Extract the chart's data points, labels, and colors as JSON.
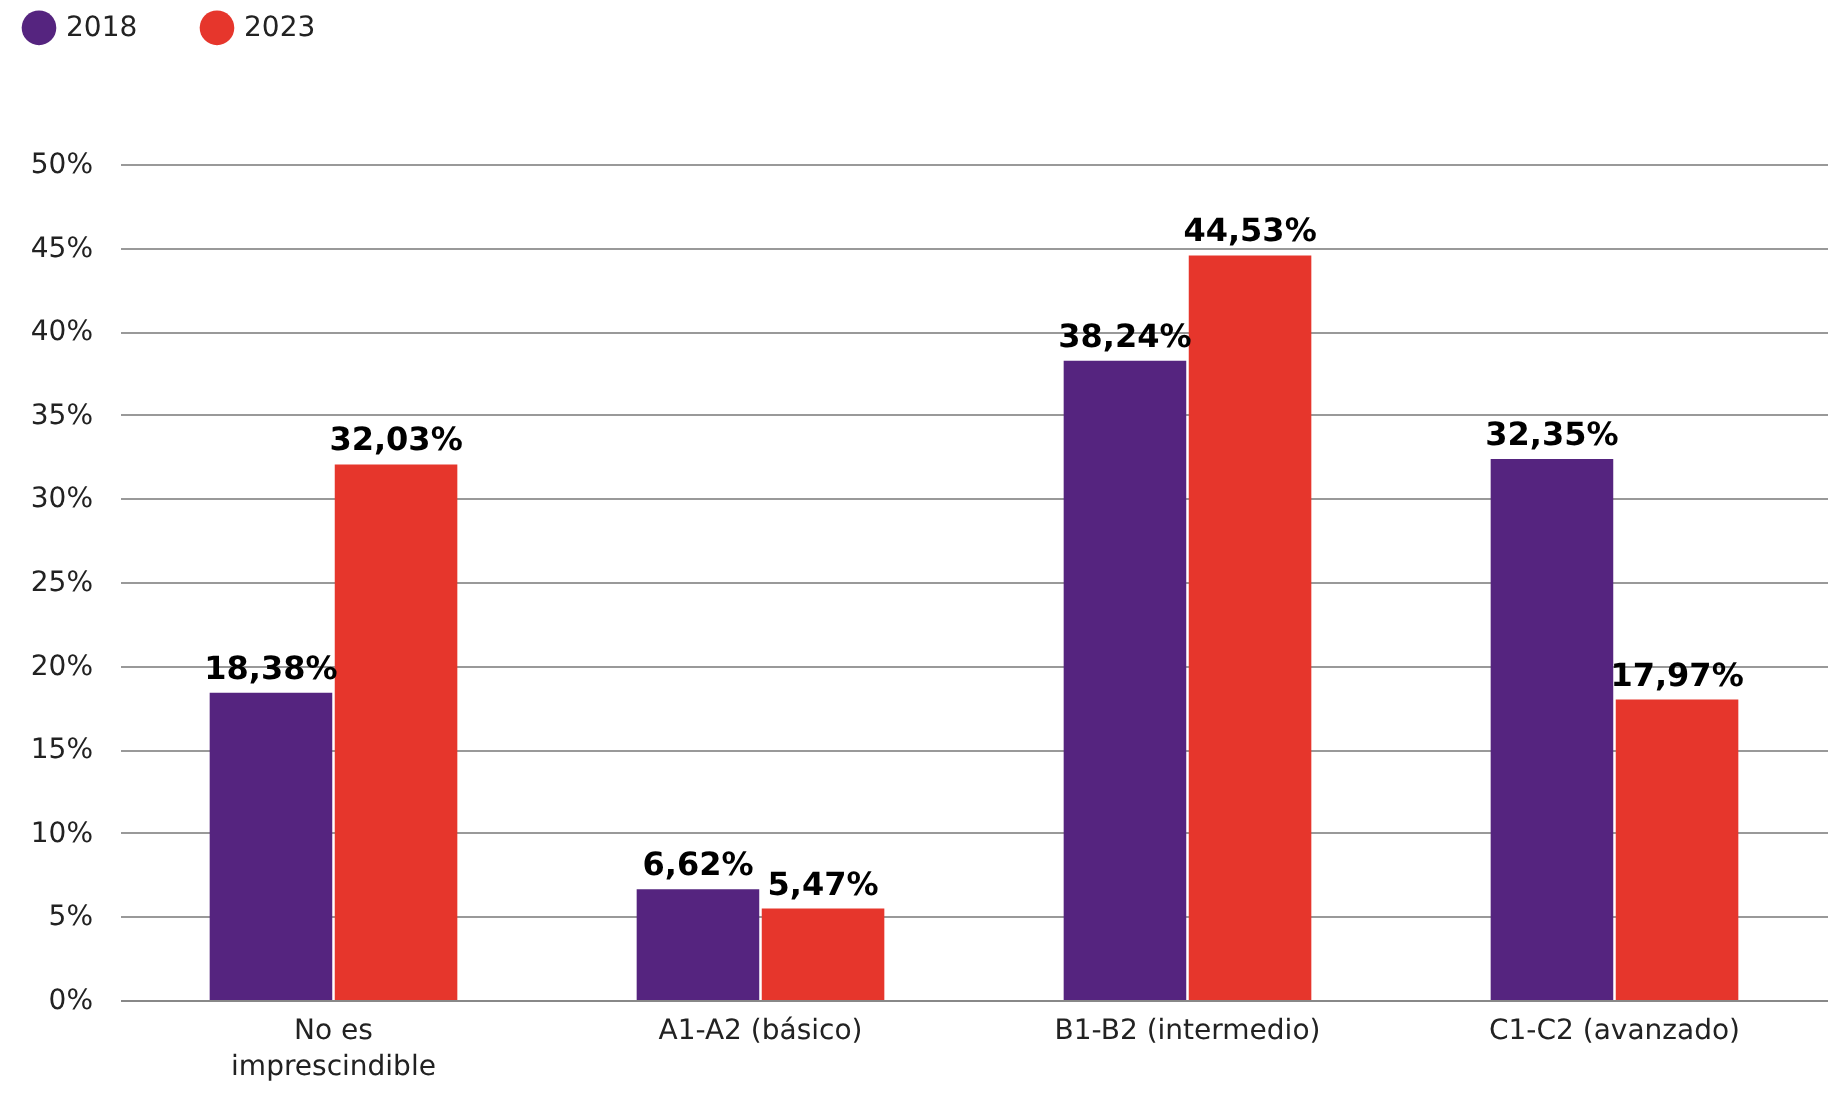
{
  "chart_data": {
    "type": "bar",
    "categories": [
      "No es imprescindible",
      "A1-A2 (básico)",
      "B1-B2 (intermedio)",
      "C1-C2 (avanzado)"
    ],
    "series": [
      {
        "name": "2018",
        "color": "#55247f",
        "values": [
          18.38,
          6.62,
          38.24,
          32.35
        ],
        "value_labels": [
          "18,38%",
          "6,62%",
          "38,24%",
          "32,35%"
        ]
      },
      {
        "name": "2023",
        "color": "#e6362c",
        "values": [
          32.03,
          5.47,
          44.53,
          17.97
        ],
        "value_labels": [
          "32,03%",
          "5,47%",
          "44,53%",
          "17,97%"
        ]
      }
    ],
    "ylim": [
      0,
      50
    ],
    "yticks": [
      {
        "value": 0,
        "label": "0%"
      },
      {
        "value": 5,
        "label": "5%"
      },
      {
        "value": 10,
        "label": "10%"
      },
      {
        "value": 15,
        "label": "15%"
      },
      {
        "value": 20,
        "label": "20%"
      },
      {
        "value": 25,
        "label": "25%"
      },
      {
        "value": 30,
        "label": "30%"
      },
      {
        "value": 35,
        "label": "35%"
      },
      {
        "value": 40,
        "label": "40%"
      },
      {
        "value": 45,
        "label": "45%"
      },
      {
        "value": 50,
        "label": "50%"
      }
    ],
    "grid": "y",
    "legend": "top left"
  }
}
